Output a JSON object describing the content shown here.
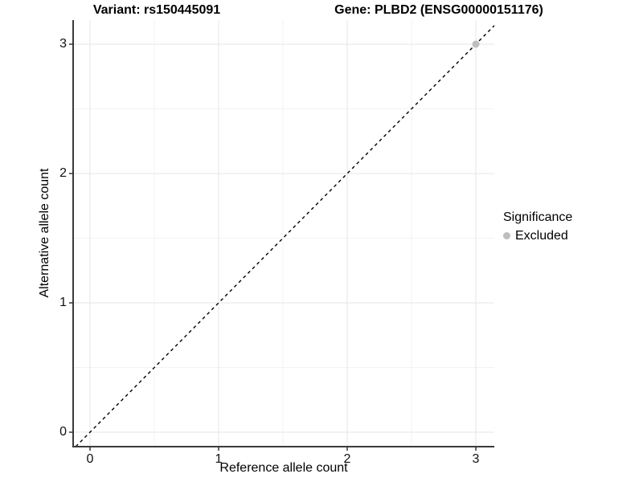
{
  "chart_data": {
    "type": "scatter",
    "title": "Variant: rs150445091    Gene: PLBD2 (ENSG00000151176)",
    "titles": {
      "variant": "Variant: rs150445091",
      "gene": "Gene: PLBD2 (ENSG00000151176)"
    },
    "xlabel": "Reference allele count",
    "ylabel": "Alternative allele count",
    "x_ticks": [
      0,
      1,
      2,
      3
    ],
    "y_ticks": [
      0,
      1,
      2,
      3
    ],
    "xlim": [
      -0.13,
      3.14
    ],
    "ylim": [
      -0.11,
      3.19
    ],
    "grid": "on",
    "minor_grid": "on",
    "series": [
      {
        "name": "Excluded",
        "color": "#bebebe",
        "points": [
          {
            "x": 3,
            "y": 3
          }
        ]
      }
    ],
    "reference_line": {
      "type": "identity",
      "slope": 1,
      "intercept": 0,
      "style": "dashed",
      "color": "#000000"
    },
    "legend": {
      "title": "Significance",
      "position": "right",
      "items": [
        {
          "label": "Excluded",
          "color": "#bebebe",
          "marker": "circle"
        }
      ]
    }
  },
  "colors": {
    "background": "#ffffff",
    "major_grid": "#e6e6e6",
    "minor_grid": "#f3f3f3",
    "axis_line": "#3a3a3a",
    "tick_mark": "#333333",
    "point": "#bebebe",
    "text": "#000000"
  }
}
